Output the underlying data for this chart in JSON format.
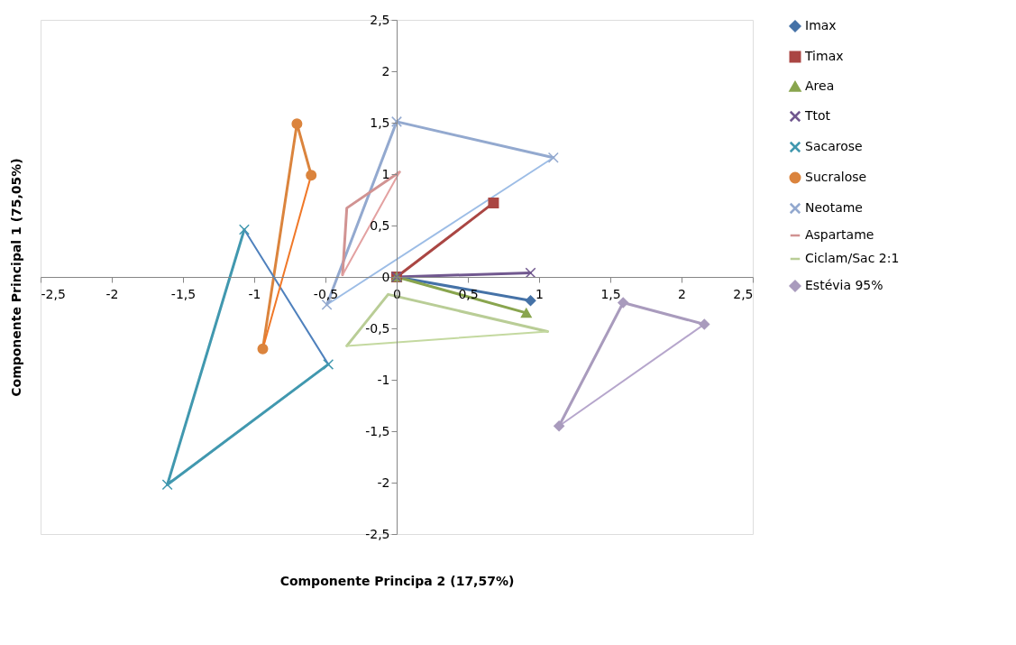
{
  "chart_data": {
    "type": "line",
    "xlabel": "Componente Principa 2 (17,57%)",
    "ylabel": "Componente Principal  1 (75,05%)",
    "xlim": [
      -2.5,
      2.5
    ],
    "xticks": [
      {
        "value": -2.5,
        "label": "-2,5"
      },
      {
        "value": -2,
        "label": "-2"
      },
      {
        "value": -1.5,
        "label": "-1,5"
      },
      {
        "value": -1,
        "label": "-1"
      },
      {
        "value": -0.5,
        "label": "-0,5"
      },
      {
        "value": 0,
        "label": "0"
      },
      {
        "value": 0.5,
        "label": "0,5"
      },
      {
        "value": 1,
        "label": "1"
      },
      {
        "value": 1.5,
        "label": "1,5"
      },
      {
        "value": 2,
        "label": "2"
      },
      {
        "value": 2.5,
        "label": "2,5"
      }
    ],
    "ylim": [
      -2.5,
      2.5
    ],
    "yticks": [
      {
        "value": -2.5,
        "label": "-2,5"
      },
      {
        "value": -2,
        "label": "-2"
      },
      {
        "value": -1.5,
        "label": "-1,5"
      },
      {
        "value": -1,
        "label": "-1"
      },
      {
        "value": -0.5,
        "label": "-0,5"
      },
      {
        "value": 0,
        "label": "0"
      },
      {
        "value": 0.5,
        "label": "0,5"
      },
      {
        "value": 1,
        "label": "1"
      },
      {
        "value": 1.5,
        "label": "1,5"
      },
      {
        "value": 2,
        "label": "2"
      },
      {
        "value": 2.5,
        "label": "2,5"
      }
    ],
    "grid": false,
    "legend": "right",
    "line_style": "solid",
    "series": [
      {
        "name": "Imax",
        "color": "#4572a7",
        "marker": "diamond",
        "x": [
          0,
          0.94
        ],
        "values": [
          0,
          -0.23
        ]
      },
      {
        "name": "Timax",
        "color": "#aa4643",
        "marker": "square",
        "x": [
          0,
          0.68
        ],
        "values": [
          0,
          0.72
        ]
      },
      {
        "name": "Area",
        "color": "#89a54e",
        "marker": "triangle",
        "x": [
          0,
          0.91
        ],
        "values": [
          0,
          -0.35
        ]
      },
      {
        "name": "Ttot",
        "color": "#71588f",
        "marker": "cross",
        "x": [
          0,
          0.94
        ],
        "values": [
          0,
          0.04
        ]
      },
      {
        "name": "Sacarose",
        "color": "#4198af",
        "marker": "cross",
        "x": [
          -1.07,
          -1.61,
          -0.48
        ],
        "values": [
          0.46,
          -2.02,
          -0.85
        ]
      },
      {
        "name": "Sucralose",
        "color": "#db843d",
        "marker": "circle",
        "x": [
          -0.94,
          -0.7,
          -0.6
        ],
        "values": [
          -0.7,
          1.49,
          0.99
        ]
      },
      {
        "name": "Neotame",
        "color": "#93a9cf",
        "marker": "cross",
        "x": [
          -0.49,
          0,
          1.1
        ],
        "values": [
          -0.27,
          1.51,
          1.16
        ]
      },
      {
        "name": "Aspartame",
        "color": "#d19392",
        "marker": "none",
        "x": [
          -0.38,
          -0.35,
          0.02
        ],
        "values": [
          0.02,
          0.67,
          1.02
        ]
      },
      {
        "name": "Ciclam/Sac 2:1",
        "color": "#b9cd96",
        "marker": "none",
        "x": [
          -0.35,
          -0.06,
          1.06
        ],
        "values": [
          -0.67,
          -0.17,
          -0.53
        ]
      },
      {
        "name": "Estévia 95%",
        "color": "#a99bbd",
        "marker": "diamond",
        "x": [
          1.14,
          1.59,
          2.16
        ],
        "values": [
          -1.45,
          -0.25,
          -0.46
        ]
      },
      {
        "color": "#4f81bd",
        "marker": "none",
        "x": [
          -1.07,
          -0.48
        ],
        "values": [
          0.46,
          -0.85
        ]
      },
      {
        "color": "#f07828",
        "marker": "none",
        "x": [
          -0.94,
          -0.6
        ],
        "values": [
          -0.7,
          0.99
        ]
      },
      {
        "color": "#9dbde6",
        "marker": "none",
        "x": [
          -0.49,
          1.1
        ],
        "values": [
          -0.27,
          1.16
        ]
      },
      {
        "color": "#e3a1a1",
        "marker": "none",
        "x": [
          -0.38,
          0.02
        ],
        "values": [
          0.02,
          1.02
        ]
      },
      {
        "color": "#c4d9a0",
        "marker": "none",
        "x": [
          -0.35,
          1.06
        ],
        "values": [
          -0.67,
          -0.53
        ]
      },
      {
        "color": "#b6a6cc",
        "marker": "none",
        "x": [
          1.14,
          2.16
        ],
        "values": [
          -1.45,
          -0.46
        ]
      }
    ]
  }
}
